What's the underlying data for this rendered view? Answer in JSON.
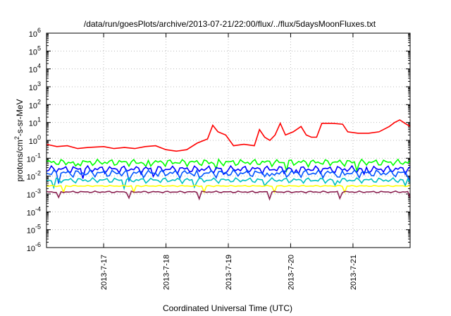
{
  "chart_data": {
    "type": "line",
    "title": "/data/run/goesPlots/archive/2013-07-21/22:00/flux/../flux/5daysMoonFluxes.txt",
    "xlabel": "Coordinated Universal Time (UTC)",
    "ylabel_parts": {
      "pre": "protons/cm",
      "sup": "2",
      "post": "-s-sr-MeV"
    },
    "yscale": "log",
    "ylim_exp": [
      -6,
      6
    ],
    "xlim": [
      "2013-07-16T02:00",
      "2013-07-21T22:00"
    ],
    "grid": true,
    "x_ticks": [
      {
        "label": "2013-7-17",
        "t": "2013-07-17T00:00"
      },
      {
        "label": "2013-7-18",
        "t": "2013-07-18T00:00"
      },
      {
        "label": "2013-7-19",
        "t": "2013-07-19T00:00"
      },
      {
        "label": "2013-7-20",
        "t": "2013-07-20T00:00"
      },
      {
        "label": "2013-7-21",
        "t": "2013-07-21T00:00"
      }
    ],
    "series": [
      {
        "color": "#ff0000",
        "points": [
          [
            "2013-07-16T02:00",
            0.6
          ],
          [
            "2013-07-16T06:00",
            0.45
          ],
          [
            "2013-07-16T10:00",
            0.5
          ],
          [
            "2013-07-16T14:00",
            0.35
          ],
          [
            "2013-07-16T18:00",
            0.4
          ],
          [
            "2013-07-17T00:00",
            0.45
          ],
          [
            "2013-07-17T04:00",
            0.35
          ],
          [
            "2013-07-17T08:00",
            0.4
          ],
          [
            "2013-07-17T12:00",
            0.35
          ],
          [
            "2013-07-17T16:00",
            0.45
          ],
          [
            "2013-07-17T20:00",
            0.5
          ],
          [
            "2013-07-18T00:00",
            0.3
          ],
          [
            "2013-07-18T04:00",
            0.25
          ],
          [
            "2013-07-18T08:00",
            0.3
          ],
          [
            "2013-07-18T12:00",
            0.7
          ],
          [
            "2013-07-18T16:00",
            1.2
          ],
          [
            "2013-07-18T18:00",
            7
          ],
          [
            "2013-07-18T20:00",
            3
          ],
          [
            "2013-07-18T23:00",
            2
          ],
          [
            "2013-07-19T02:00",
            0.5
          ],
          [
            "2013-07-19T06:00",
            0.6
          ],
          [
            "2013-07-19T10:00",
            0.5
          ],
          [
            "2013-07-19T12:00",
            4
          ],
          [
            "2013-07-19T14:00",
            1.5
          ],
          [
            "2013-07-19T16:00",
            1
          ],
          [
            "2013-07-19T18:00",
            2
          ],
          [
            "2013-07-19T20:00",
            9
          ],
          [
            "2013-07-19T22:00",
            2
          ],
          [
            "2013-07-20T01:00",
            3
          ],
          [
            "2013-07-20T04:00",
            6
          ],
          [
            "2013-07-20T06:00",
            2
          ],
          [
            "2013-07-20T08:00",
            1.5
          ],
          [
            "2013-07-20T10:00",
            1.5
          ],
          [
            "2013-07-20T12:00",
            9
          ],
          [
            "2013-07-20T16:00",
            9
          ],
          [
            "2013-07-20T20:00",
            8
          ],
          [
            "2013-07-20T22:00",
            3
          ],
          [
            "2013-07-21T02:00",
            2.5
          ],
          [
            "2013-07-21T06:00",
            2.5
          ],
          [
            "2013-07-21T10:00",
            3
          ],
          [
            "2013-07-21T14:00",
            6
          ],
          [
            "2013-07-21T16:00",
            10
          ],
          [
            "2013-07-21T18:00",
            14
          ],
          [
            "2013-07-21T20:00",
            9
          ],
          [
            "2013-07-21T22:00",
            6
          ]
        ]
      },
      {
        "color": "#00ff00",
        "base": 0.06,
        "amp": 0.45,
        "phase": 0.3
      },
      {
        "color": "#0000ff",
        "base": 0.025,
        "amp": 0.5,
        "phase": 1.1
      },
      {
        "color": "#0055ff",
        "base": 0.015,
        "amp": 0.5,
        "phase": 2.3
      },
      {
        "color": "#00c0c0",
        "base": 0.006,
        "amp": 0.35,
        "phase": 3.7
      },
      {
        "color": "#ffff00",
        "base": 0.0028,
        "amp": 0.08,
        "phase": 0.9
      },
      {
        "color": "#8b2252",
        "base": 0.0013,
        "amp": 0.12,
        "phase": 5.2
      }
    ]
  }
}
